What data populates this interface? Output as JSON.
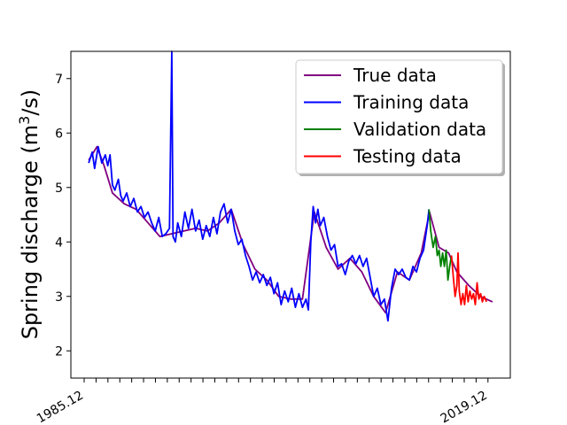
{
  "chart_data": {
    "type": "line",
    "title": "",
    "xlabel": "",
    "ylabel_main": "Spring discharge (m",
    "ylabel_sup": "3",
    "ylabel_end": "/s)",
    "ylim": [
      1.5,
      7.5
    ],
    "y_ticks": [
      2,
      3,
      4,
      5,
      6,
      7
    ],
    "x_first_label": "1985.12",
    "x_last_label": "2019.12",
    "x_range": [
      1984.0,
      2021.0
    ],
    "legend_position": "top-right",
    "grid": false,
    "series": [
      {
        "name": "True data",
        "color": "#800080",
        "points": [
          [
            1985.5,
            5.5
          ],
          [
            1986.2,
            5.75
          ],
          [
            1986.8,
            5.4
          ],
          [
            1987.5,
            4.9
          ],
          [
            1988.5,
            4.7
          ],
          [
            1989.5,
            4.6
          ],
          [
            1990.5,
            4.35
          ],
          [
            1991.5,
            4.1
          ],
          [
            1992.5,
            4.15
          ],
          [
            1993.5,
            4.2
          ],
          [
            1994.5,
            4.25
          ],
          [
            1995.5,
            4.2
          ],
          [
            1996.5,
            4.35
          ],
          [
            1997.5,
            4.6
          ],
          [
            1998.5,
            3.95
          ],
          [
            1999.5,
            3.5
          ],
          [
            2000.5,
            3.3
          ],
          [
            2001.5,
            3.0
          ],
          [
            2002.5,
            2.95
          ],
          [
            2003.5,
            2.95
          ],
          [
            2004.5,
            4.55
          ],
          [
            2005.5,
            3.9
          ],
          [
            2006.5,
            3.5
          ],
          [
            2007.5,
            3.7
          ],
          [
            2008.5,
            3.45
          ],
          [
            2009.5,
            3.0
          ],
          [
            2010.5,
            2.7
          ],
          [
            2011.5,
            3.45
          ],
          [
            2012.5,
            3.3
          ],
          [
            2013.5,
            3.8
          ],
          [
            2014.2,
            4.55
          ],
          [
            2015.0,
            3.9
          ],
          [
            2015.8,
            3.8
          ],
          [
            2016.5,
            3.45
          ],
          [
            2017.5,
            3.2
          ],
          [
            2018.5,
            3.0
          ],
          [
            2019.5,
            2.9
          ]
        ]
      },
      {
        "name": "Training data",
        "color": "#0000ff",
        "points": [
          [
            1985.5,
            5.45
          ],
          [
            1985.8,
            5.65
          ],
          [
            1986.0,
            5.35
          ],
          [
            1986.3,
            5.75
          ],
          [
            1986.6,
            5.45
          ],
          [
            1986.9,
            5.6
          ],
          [
            1987.1,
            5.4
          ],
          [
            1987.3,
            5.6
          ],
          [
            1987.5,
            5.05
          ],
          [
            1987.7,
            4.95
          ],
          [
            1988.0,
            5.15
          ],
          [
            1988.2,
            4.85
          ],
          [
            1988.4,
            4.75
          ],
          [
            1988.7,
            4.9
          ],
          [
            1989.0,
            4.65
          ],
          [
            1989.3,
            4.8
          ],
          [
            1989.6,
            4.55
          ],
          [
            1989.9,
            4.65
          ],
          [
            1990.2,
            4.45
          ],
          [
            1990.5,
            4.55
          ],
          [
            1990.8,
            4.35
          ],
          [
            1991.1,
            4.2
          ],
          [
            1991.4,
            4.45
          ],
          [
            1991.7,
            4.1
          ],
          [
            1992.0,
            4.15
          ],
          [
            1992.3,
            4.25
          ],
          [
            1992.5,
            7.5
          ],
          [
            1992.6,
            4.1
          ],
          [
            1992.8,
            4.0
          ],
          [
            1993.0,
            4.35
          ],
          [
            1993.3,
            4.1
          ],
          [
            1993.6,
            4.55
          ],
          [
            1993.9,
            4.25
          ],
          [
            1994.2,
            4.6
          ],
          [
            1994.5,
            4.2
          ],
          [
            1994.8,
            4.4
          ],
          [
            1995.1,
            4.05
          ],
          [
            1995.4,
            4.3
          ],
          [
            1995.7,
            4.1
          ],
          [
            1996.0,
            4.45
          ],
          [
            1996.3,
            4.15
          ],
          [
            1996.6,
            4.55
          ],
          [
            1996.9,
            4.7
          ],
          [
            1997.2,
            4.35
          ],
          [
            1997.5,
            4.6
          ],
          [
            1997.8,
            4.2
          ],
          [
            1998.1,
            3.95
          ],
          [
            1998.4,
            4.05
          ],
          [
            1998.7,
            3.75
          ],
          [
            1999.0,
            3.55
          ],
          [
            1999.3,
            3.3
          ],
          [
            1999.6,
            3.45
          ],
          [
            1999.9,
            3.25
          ],
          [
            2000.2,
            3.4
          ],
          [
            2000.5,
            3.2
          ],
          [
            2000.8,
            3.35
          ],
          [
            2001.1,
            3.05
          ],
          [
            2001.4,
            3.25
          ],
          [
            2001.7,
            2.85
          ],
          [
            2002.0,
            3.1
          ],
          [
            2002.3,
            2.9
          ],
          [
            2002.6,
            3.15
          ],
          [
            2002.9,
            2.8
          ],
          [
            2003.2,
            3.05
          ],
          [
            2003.5,
            2.8
          ],
          [
            2003.8,
            2.95
          ],
          [
            2004.0,
            2.75
          ],
          [
            2004.2,
            4.0
          ],
          [
            2004.4,
            4.65
          ],
          [
            2004.6,
            4.35
          ],
          [
            2004.8,
            4.6
          ],
          [
            2005.0,
            4.3
          ],
          [
            2005.3,
            4.45
          ],
          [
            2005.6,
            4.1
          ],
          [
            2005.9,
            3.85
          ],
          [
            2006.2,
            3.95
          ],
          [
            2006.5,
            3.55
          ],
          [
            2006.8,
            3.6
          ],
          [
            2007.1,
            3.4
          ],
          [
            2007.4,
            3.65
          ],
          [
            2007.7,
            3.75
          ],
          [
            2008.0,
            3.6
          ],
          [
            2008.3,
            3.75
          ],
          [
            2008.6,
            3.55
          ],
          [
            2008.9,
            3.7
          ],
          [
            2009.2,
            3.35
          ],
          [
            2009.5,
            3.0
          ],
          [
            2009.8,
            3.15
          ],
          [
            2010.1,
            2.85
          ],
          [
            2010.4,
            2.95
          ],
          [
            2010.7,
            2.55
          ],
          [
            2011.0,
            3.15
          ],
          [
            2011.3,
            3.5
          ],
          [
            2011.6,
            3.4
          ],
          [
            2011.9,
            3.5
          ],
          [
            2012.2,
            3.35
          ],
          [
            2012.5,
            3.3
          ],
          [
            2012.8,
            3.55
          ],
          [
            2013.1,
            3.45
          ],
          [
            2013.4,
            3.7
          ],
          [
            2013.7,
            3.85
          ],
          [
            2014.0,
            4.3
          ],
          [
            2014.15,
            4.6
          ]
        ]
      },
      {
        "name": "Validation data",
        "color": "#008000",
        "points": [
          [
            2014.15,
            4.6
          ],
          [
            2014.3,
            4.2
          ],
          [
            2014.5,
            3.9
          ],
          [
            2014.7,
            4.1
          ],
          [
            2014.85,
            3.75
          ],
          [
            2015.0,
            3.85
          ],
          [
            2015.15,
            3.55
          ],
          [
            2015.3,
            3.8
          ],
          [
            2015.45,
            3.55
          ],
          [
            2015.6,
            3.85
          ],
          [
            2015.75,
            3.3
          ],
          [
            2015.9,
            3.55
          ],
          [
            2016.05,
            3.75
          ]
        ]
      },
      {
        "name": "Testing data",
        "color": "#ff0000",
        "points": [
          [
            2016.05,
            3.75
          ],
          [
            2016.2,
            3.35
          ],
          [
            2016.35,
            3.0
          ],
          [
            2016.5,
            3.2
          ],
          [
            2016.6,
            3.8
          ],
          [
            2016.7,
            3.1
          ],
          [
            2016.85,
            2.85
          ],
          [
            2017.0,
            3.05
          ],
          [
            2017.15,
            2.85
          ],
          [
            2017.3,
            3.2
          ],
          [
            2017.45,
            2.9
          ],
          [
            2017.6,
            3.1
          ],
          [
            2017.75,
            2.95
          ],
          [
            2017.9,
            3.05
          ],
          [
            2018.05,
            2.85
          ],
          [
            2018.2,
            3.25
          ],
          [
            2018.35,
            2.95
          ],
          [
            2018.5,
            3.05
          ],
          [
            2018.65,
            2.9
          ],
          [
            2018.8,
            3.0
          ],
          [
            2019.0,
            2.9
          ]
        ]
      }
    ]
  }
}
